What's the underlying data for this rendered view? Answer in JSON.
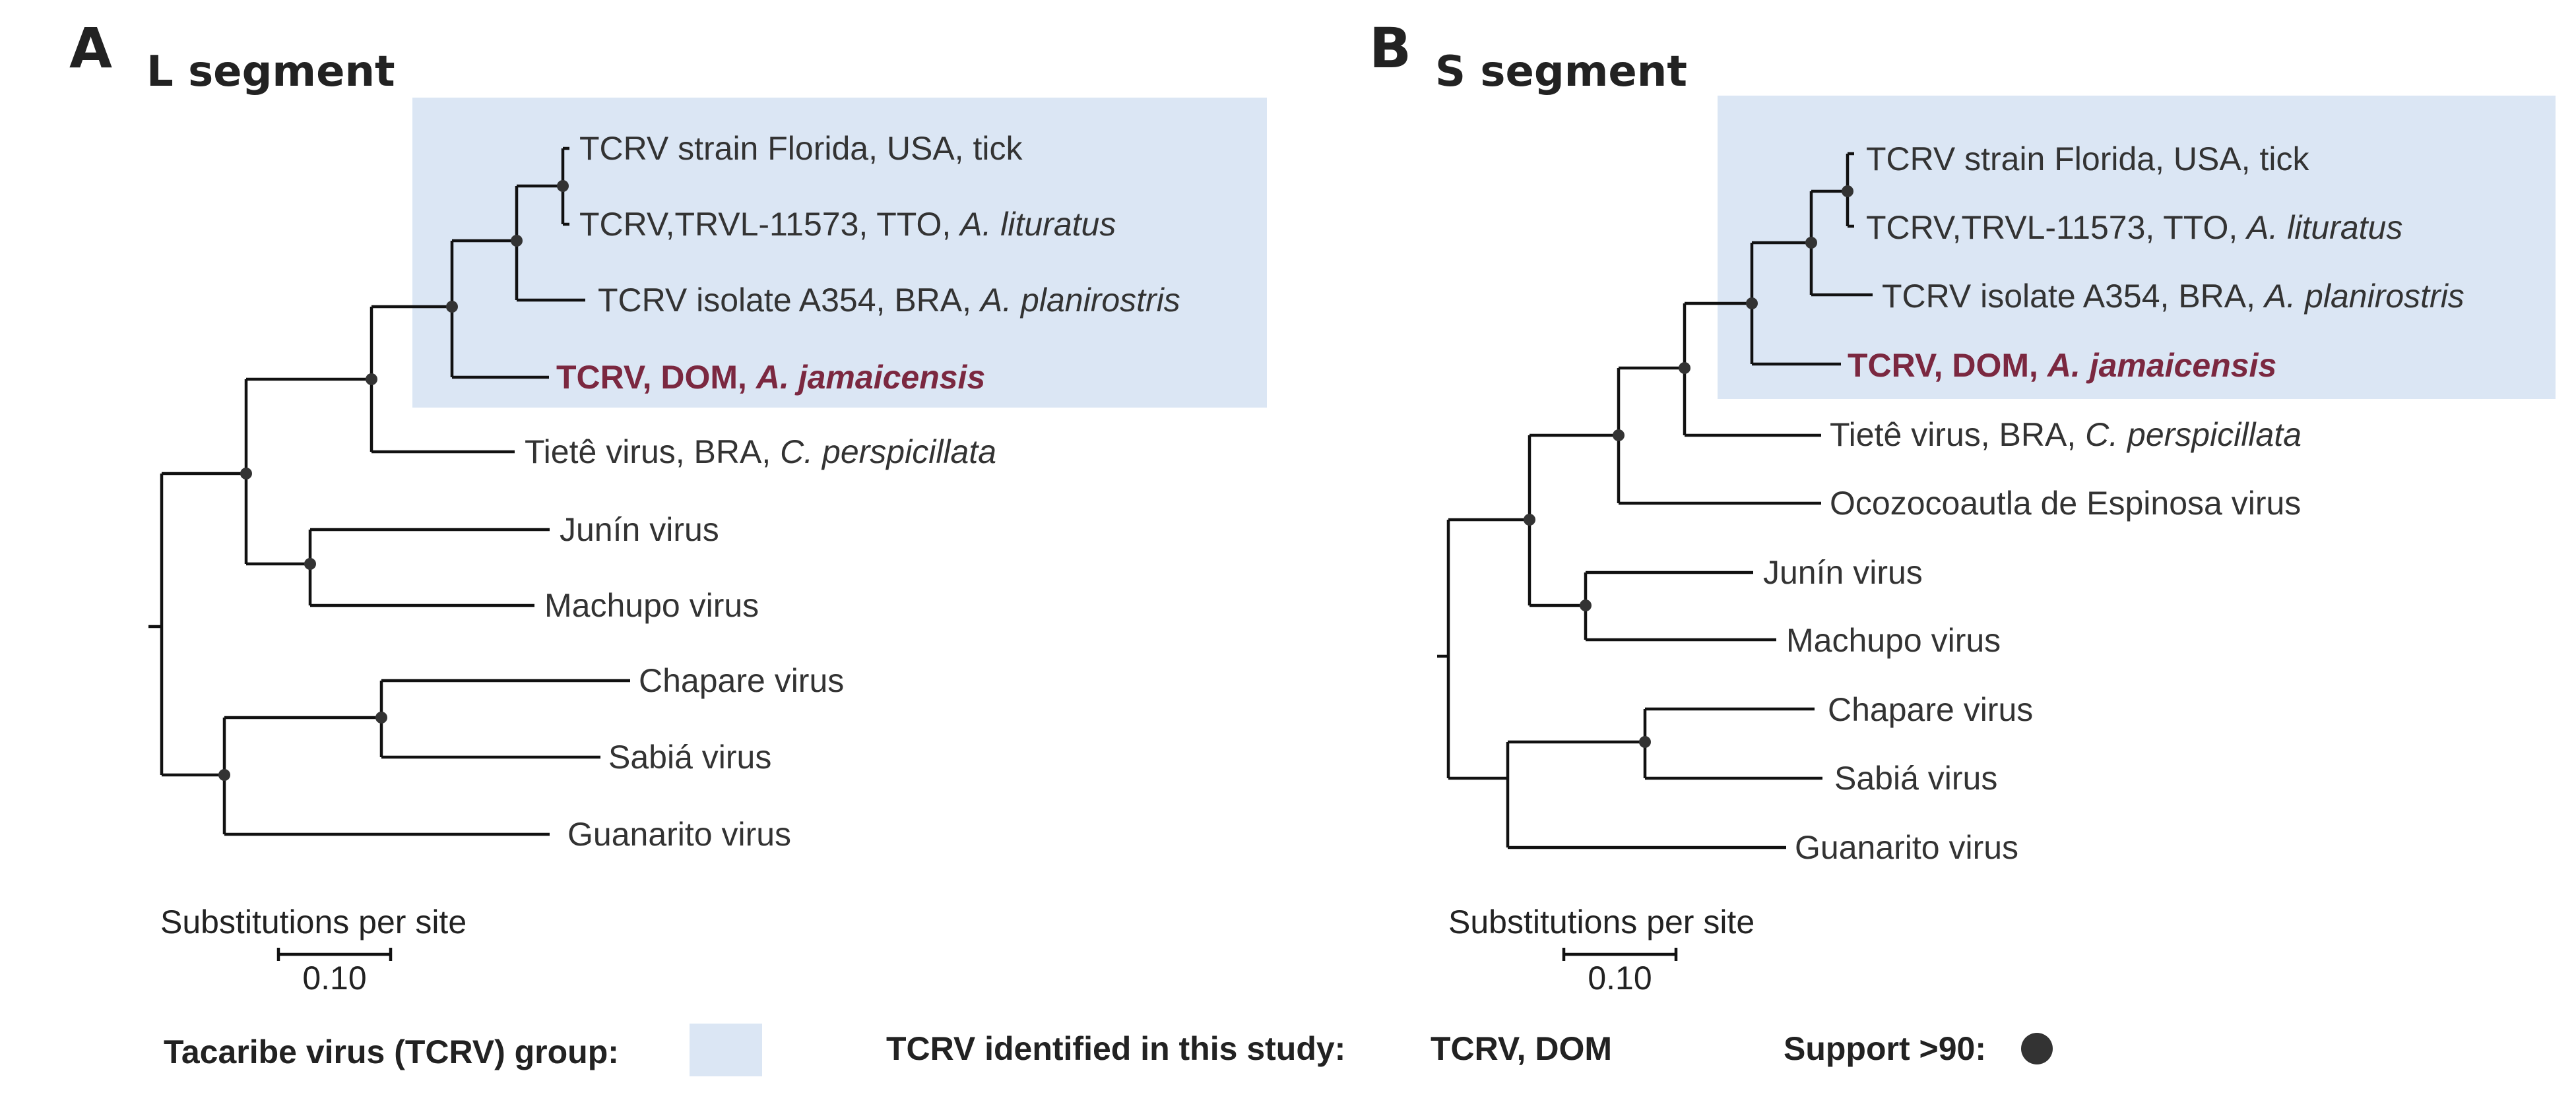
{
  "colors": {
    "group_box": "#dbe6f4",
    "highlight_text": "#7b2840",
    "branch": "#111111",
    "support_dot": "#333333",
    "label": "#333333"
  },
  "panels": [
    {
      "letter": "A",
      "title": "L segment",
      "scale_label": "Substitutions per site",
      "scale_value": "0.10",
      "tips": [
        {
          "plain": "TCRV strain Florida, USA, tick",
          "italic": ""
        },
        {
          "plain": "TCRV,TRVL-11573, TTO, ",
          "italic": "A. lituratus"
        },
        {
          "plain": "TCRV isolate A354, BRA, ",
          "italic": "A. planirostris"
        },
        {
          "plain": "TCRV, DOM, ",
          "italic": "A. jamaicensis",
          "highlight": true
        },
        {
          "plain": "Tietê virus, BRA, ",
          "italic": "C. perspicillata"
        },
        {
          "plain": "Junín virus",
          "italic": ""
        },
        {
          "plain": "Machupo virus",
          "italic": ""
        },
        {
          "plain": "Chapare virus",
          "italic": ""
        },
        {
          "plain": "Sabiá virus",
          "italic": ""
        },
        {
          "plain": "Guanarito virus",
          "italic": ""
        }
      ]
    },
    {
      "letter": "B",
      "title": "S segment",
      "scale_label": "Substitutions per site",
      "scale_value": "0.10",
      "tips": [
        {
          "plain": "TCRV strain Florida, USA, tick",
          "italic": ""
        },
        {
          "plain": "TCRV,TRVL-11573, TTO, ",
          "italic": "A. lituratus"
        },
        {
          "plain": "TCRV isolate A354, BRA, ",
          "italic": "A. planirostris"
        },
        {
          "plain": "TCRV, DOM, ",
          "italic": "A. jamaicensis",
          "highlight": true
        },
        {
          "plain": "Tietê virus, BRA, ",
          "italic": "C. perspicillata"
        },
        {
          "plain": "Ocozocoautla de Espinosa virus",
          "italic": ""
        },
        {
          "plain": "Junín virus",
          "italic": ""
        },
        {
          "plain": "Machupo virus",
          "italic": ""
        },
        {
          "plain": "Chapare virus",
          "italic": ""
        },
        {
          "plain": "Sabiá virus",
          "italic": ""
        },
        {
          "plain": "Guanarito virus",
          "italic": ""
        }
      ]
    }
  ],
  "legend": {
    "group_label": "Tacaribe virus (TCRV) group:",
    "identified_label": "TCRV identified in this study:",
    "identified_value": "TCRV, DOM",
    "support_label": "Support >90:"
  }
}
